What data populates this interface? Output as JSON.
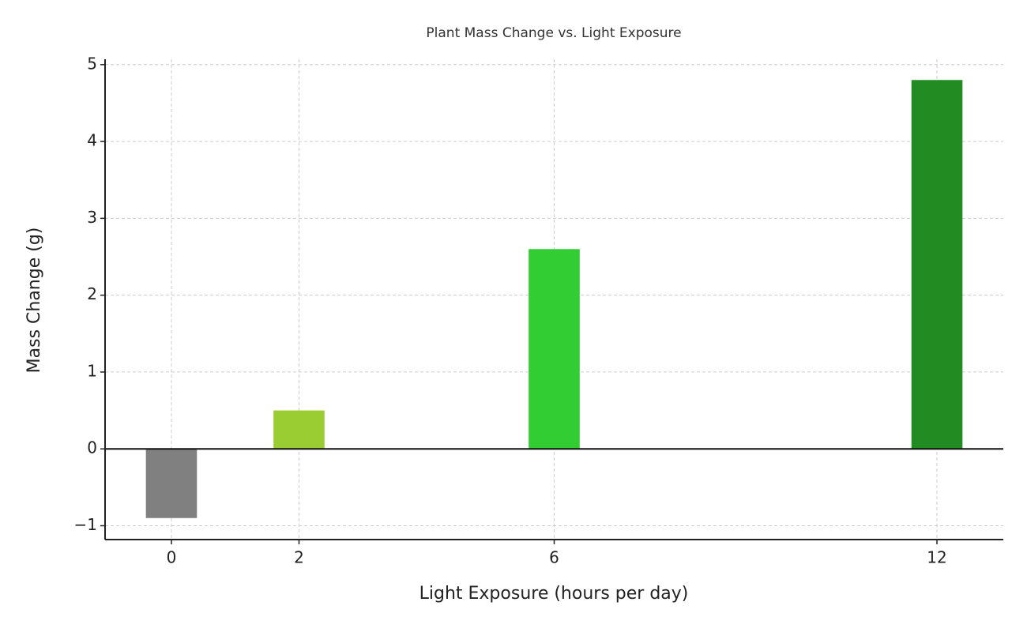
{
  "chart_data": {
    "type": "bar",
    "title": "Plant Mass Change vs. Light Exposure",
    "x_label": "Light Exposure (hours per day)",
    "y_label": "Mass Change (g)",
    "x": [
      0,
      2,
      6,
      12
    ],
    "values": [
      -0.9,
      0.5,
      2.6,
      4.8
    ],
    "colors": [
      "#808080",
      "#9acd32",
      "#32cd32",
      "#228b22"
    ],
    "xlim": [
      -1.04,
      13.04
    ],
    "xticks": [
      0,
      2,
      6,
      12
    ],
    "ylim": [
      -1.18,
      5.07
    ],
    "yticks": [
      {
        "value": -1,
        "label": "−1"
      },
      0,
      1,
      2,
      3,
      4,
      5
    ],
    "grid": true
  }
}
